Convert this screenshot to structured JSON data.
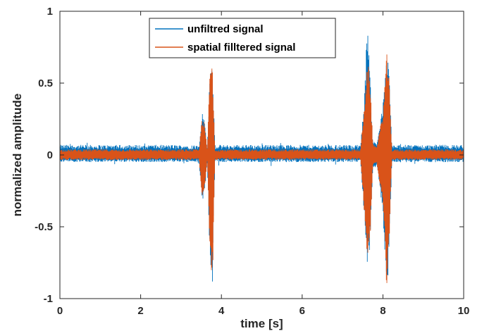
{
  "chart_data": {
    "type": "line",
    "xlabel": "time [s]",
    "ylabel": "normalized amplitude",
    "xlim": [
      0,
      10
    ],
    "ylim": [
      -1,
      1
    ],
    "xticks": [
      "0",
      "2",
      "4",
      "6",
      "8",
      "10"
    ],
    "yticks": [
      "-1",
      "-0.5",
      "0",
      "0.5",
      "1"
    ],
    "grid": false,
    "legend_placement": "top-center",
    "series": [
      {
        "name": "unfiltred signal",
        "color": "#0072BD",
        "baseline_band": [
          -0.05,
          0.07
        ],
        "envelope": {
          "t": [
            3.45,
            3.52,
            3.58,
            3.65,
            3.72,
            3.78,
            3.84,
            7.45,
            7.55,
            7.62,
            7.68,
            7.75,
            7.85,
            8.0,
            8.1,
            8.15,
            8.22
          ],
          "max": [
            0.06,
            0.3,
            0.25,
            0.05,
            0.6,
            0.62,
            0.06,
            0.07,
            0.45,
            1.0,
            0.55,
            0.1,
            0.08,
            0.35,
            0.7,
            0.6,
            0.08
          ],
          "min": [
            -0.06,
            -0.32,
            -0.28,
            -0.05,
            -0.8,
            -0.9,
            -0.06,
            -0.07,
            -0.5,
            -0.78,
            -0.65,
            -0.1,
            -0.08,
            -0.4,
            -1.0,
            -0.7,
            -0.08
          ]
        }
      },
      {
        "name": "spatial filltered signal",
        "color": "#D95319",
        "baseline_band": [
          -0.035,
          0.04
        ],
        "envelope": {
          "t": [
            3.45,
            3.52,
            3.58,
            3.65,
            3.72,
            3.78,
            3.84,
            7.45,
            7.55,
            7.62,
            7.68,
            7.75,
            7.85,
            8.0,
            8.1,
            8.15,
            8.22
          ],
          "max": [
            0.04,
            0.28,
            0.22,
            0.04,
            0.65,
            0.63,
            0.04,
            0.05,
            0.4,
            0.65,
            0.55,
            0.08,
            0.06,
            0.3,
            0.72,
            0.55,
            0.06
          ],
          "min": [
            -0.04,
            -0.3,
            -0.26,
            -0.04,
            -0.78,
            -0.9,
            -0.04,
            -0.05,
            -0.45,
            -0.75,
            -0.62,
            -0.08,
            -0.06,
            -0.35,
            -1.0,
            -0.68,
            -0.06
          ]
        }
      }
    ]
  }
}
